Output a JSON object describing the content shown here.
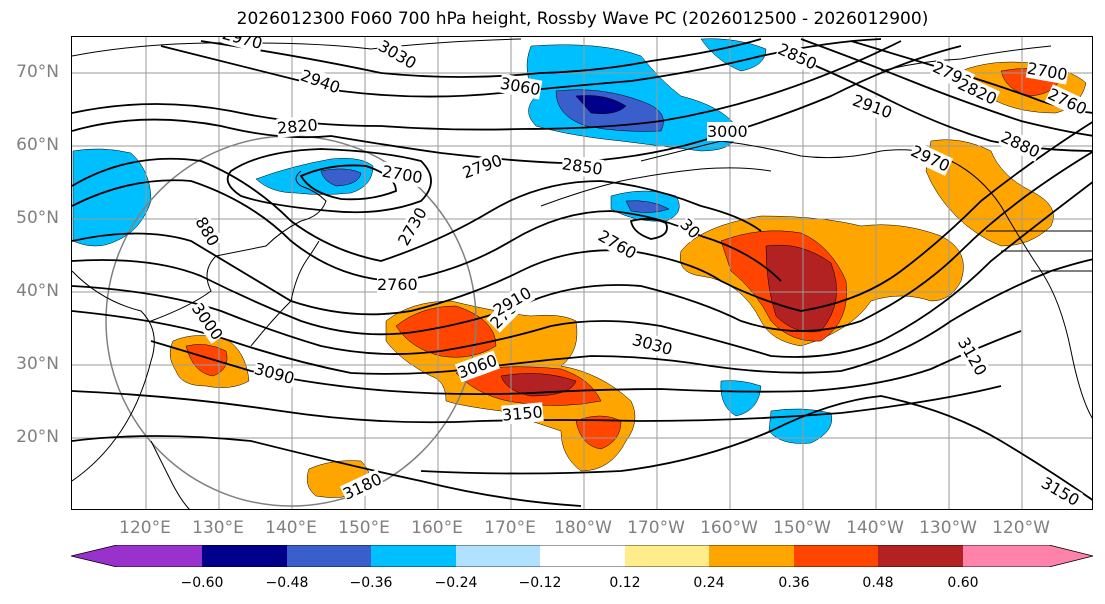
{
  "title": "2026012300 F060 700 hPa height, Rossby Wave PC (2026012500 - 2026012900)",
  "lat_labels": [
    "70°N",
    "60°N",
    "50°N",
    "40°N",
    "30°N",
    "20°N"
  ],
  "lon_labels": [
    "120°E",
    "130°E",
    "140°E",
    "150°E",
    "160°E",
    "170°E",
    "180°W",
    "170°W",
    "160°W",
    "150°W",
    "140°W",
    "130°W",
    "120°W"
  ],
  "contour_labels": [
    "2970",
    "3030",
    "2940",
    "3060",
    "2820",
    "2700",
    "2790",
    "2850",
    "3000",
    "2850",
    "2730",
    "2910",
    "2760",
    "2970",
    "2880",
    "2790",
    "2820",
    "2700",
    "2760",
    "880",
    "2760",
    "2730",
    "3030",
    "2910",
    "3060",
    "3090",
    "3000",
    "3150",
    "3120",
    "3180",
    "3150",
    "30"
  ],
  "colorbar": {
    "ticks": [
      "−0.60",
      "−0.48",
      "−0.36",
      "−0.24",
      "−0.12",
      "0.12",
      "0.24",
      "0.36",
      "0.48",
      "0.60"
    ],
    "colors": [
      "#9932cc",
      "#00008b",
      "#3a5fcd",
      "#00bfff",
      "#b0e2ff",
      "#ffffff",
      "#ffec8b",
      "#ffa500",
      "#ff4500",
      "#b22222",
      "#ff82ab"
    ]
  }
}
